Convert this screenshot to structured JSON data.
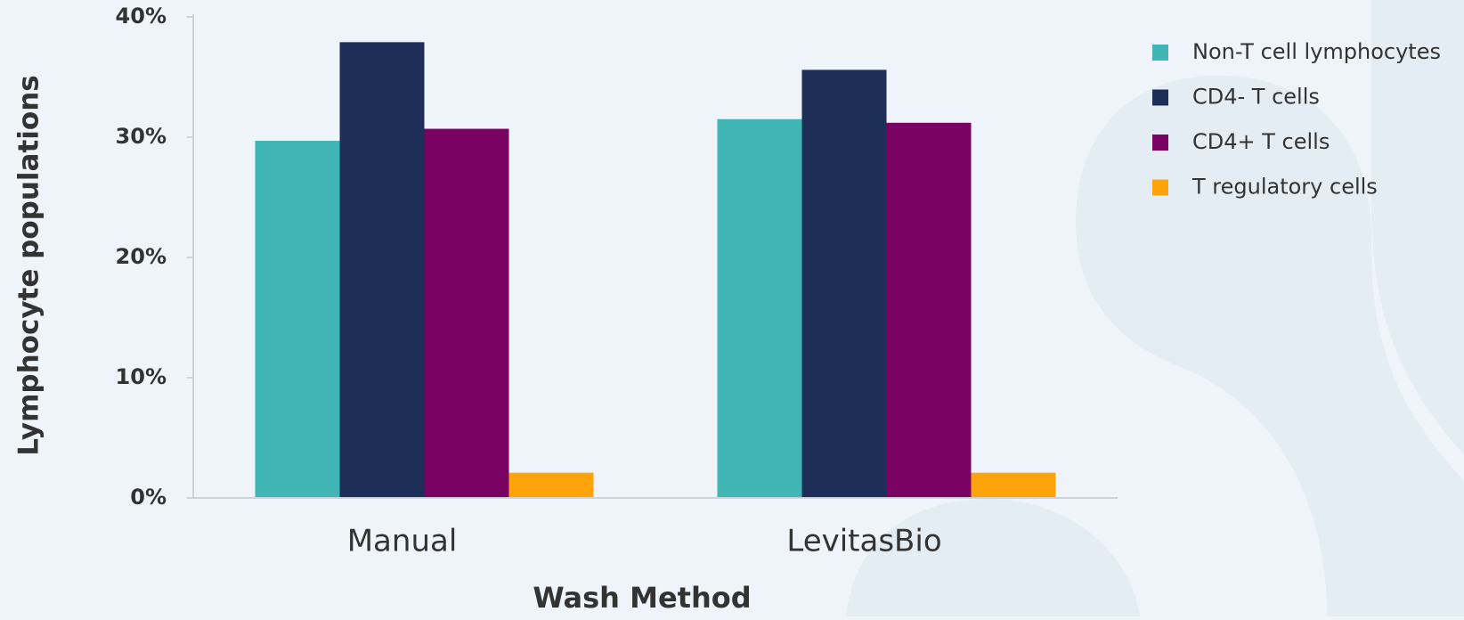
{
  "chart_data": {
    "type": "bar",
    "x_label": "Wash Method",
    "y_label": "Lymphocyte populations",
    "categories": [
      "Manual",
      "LevitasBio"
    ],
    "series": [
      {
        "name": "Non-T cell lymphocytes",
        "color": "#3fb5b4",
        "values": [
          29.7,
          31.5
        ]
      },
      {
        "name": "CD4- T cells",
        "color": "#1e2f57",
        "values": [
          37.9,
          35.6
        ]
      },
      {
        "name": "CD4+ T cells",
        "color": "#7a0263",
        "values": [
          30.7,
          31.2
        ]
      },
      {
        "name": "T regulatory cells",
        "color": "#ffa30b",
        "values": [
          2.1,
          2.1
        ]
      }
    ],
    "ylim": [
      0,
      40
    ],
    "yticks": [
      {
        "value": 0,
        "label": "0%"
      },
      {
        "value": 10,
        "label": "10%"
      },
      {
        "value": 20,
        "label": "20%"
      },
      {
        "value": 30,
        "label": "30%"
      },
      {
        "value": 40,
        "label": "40%"
      }
    ],
    "legend": "upper right"
  }
}
